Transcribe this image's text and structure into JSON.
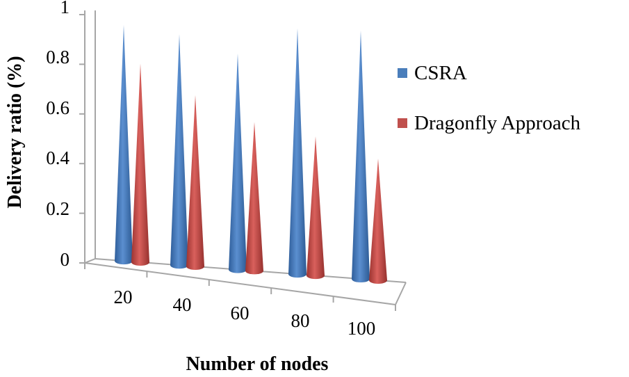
{
  "chart_data": {
    "type": "bar",
    "style": "3d-cone",
    "title": "",
    "xlabel": "Number of nodes",
    "ylabel": "Delivery ratio (%)",
    "categories": [
      "20",
      "40",
      "60",
      "80",
      "100"
    ],
    "ylim": [
      0,
      1
    ],
    "yticks": [
      "0",
      "0.2",
      "0.4",
      "0.6",
      "0.8",
      "1"
    ],
    "series": [
      {
        "name": "CSRA",
        "color": "#4a7ebb",
        "values": [
          0.95,
          0.93,
          0.87,
          0.99,
          1.0
        ]
      },
      {
        "name": "Dragonfly Approach",
        "color": "#c0504d",
        "values": [
          0.8,
          0.69,
          0.6,
          0.56,
          0.49
        ]
      }
    ],
    "legend": "right",
    "grid": false
  }
}
